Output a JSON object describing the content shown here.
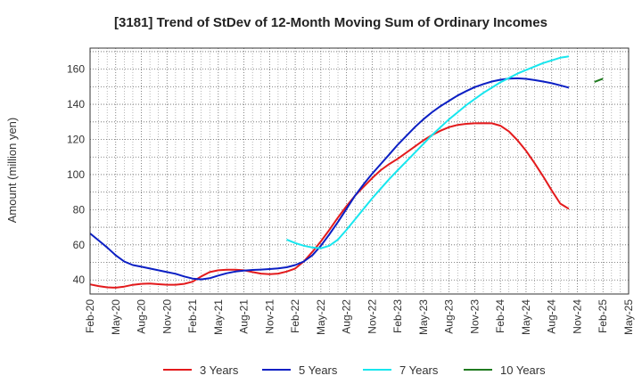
{
  "chart_data": {
    "type": "line",
    "title": "[3181]  Trend of StDev of 12-Month Moving Sum of Ordinary Incomes",
    "xlabel": "",
    "ylabel": "Amount (million yen)",
    "ylim": [
      32,
      172
    ],
    "yticks": [
      40,
      60,
      80,
      100,
      120,
      140,
      160
    ],
    "xticks": [
      "Feb-20",
      "May-20",
      "Aug-20",
      "Nov-20",
      "Feb-21",
      "May-21",
      "Aug-21",
      "Nov-21",
      "Feb-22",
      "May-22",
      "Aug-22",
      "Nov-22",
      "Feb-23",
      "May-23",
      "Aug-23",
      "Nov-23",
      "Feb-24",
      "May-24",
      "Aug-24",
      "Nov-24",
      "Feb-25",
      "May-25"
    ],
    "grid": true,
    "legend_position": "bottom",
    "series": [
      {
        "name": "3 Years",
        "color": "#e31a1c",
        "start": "Feb-20",
        "values": [
          37.5,
          36.5,
          35.8,
          35.6,
          36.2,
          37.2,
          37.8,
          38,
          37.6,
          37.3,
          37.3,
          37.8,
          39,
          42,
          44.5,
          45.5,
          45.8,
          45.8,
          45.5,
          44.5,
          43.6,
          43.3,
          43.6,
          44.8,
          46.5,
          50.5,
          56,
          62,
          68.5,
          75.5,
          82,
          88,
          93,
          98,
          102.5,
          106,
          109,
          112.5,
          116,
          119.5,
          122.5,
          125,
          127,
          128.3,
          128.9,
          129.2,
          129.3,
          129.2,
          127.8,
          124.5,
          119.5,
          113.5,
          106.5,
          99,
          91,
          83.5,
          80.5
        ]
      },
      {
        "name": "5 Years",
        "color": "#0b1fc4",
        "start": "Feb-20",
        "values": [
          66.5,
          62.5,
          58.5,
          54,
          50.5,
          48.5,
          47.5,
          46.5,
          45.5,
          44.5,
          43.5,
          42,
          40.8,
          40.3,
          41,
          42.5,
          43.8,
          44.8,
          45.3,
          45.7,
          45.9,
          46.2,
          46.6,
          47.2,
          48.5,
          50.5,
          54,
          59.5,
          66,
          73,
          80.5,
          88,
          94.5,
          100.5,
          106,
          111.5,
          117,
          122,
          127,
          131.5,
          135.5,
          139,
          142,
          145,
          147.5,
          149.8,
          151.5,
          153,
          154,
          154.6,
          154.8,
          154.5,
          153.8,
          153,
          152,
          150.8,
          149.5
        ]
      },
      {
        "name": "7 Years",
        "color": "#17e6ee",
        "start": "Jan-22",
        "values": [
          63,
          61,
          59.5,
          58.5,
          58,
          59.5,
          63,
          68.5,
          74.5,
          80.5,
          86.5,
          92,
          97.5,
          102.5,
          107.5,
          112.5,
          117.5,
          122.5,
          127,
          131.5,
          135.5,
          139.5,
          143,
          146.5,
          149.5,
          152.5,
          155,
          157.5,
          159.5,
          161.5,
          163.5,
          165,
          166.5,
          167.3
        ]
      },
      {
        "name": "10 Years",
        "color": "#1f7a1f",
        "start": "Jan-25",
        "values": [
          152.8,
          154.6
        ]
      }
    ]
  }
}
